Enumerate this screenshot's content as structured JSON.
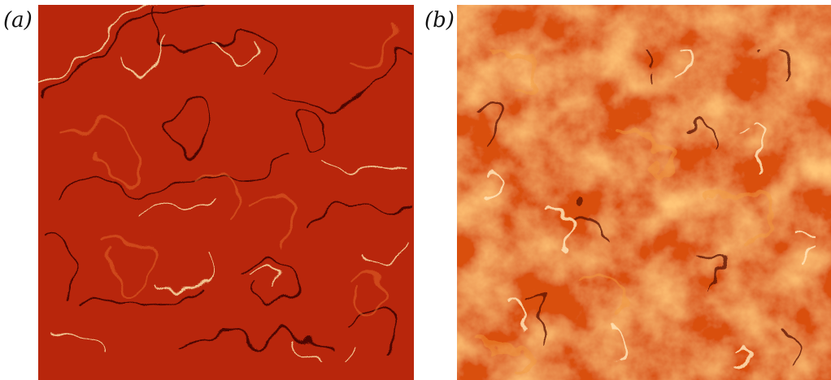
{
  "panels": [
    {
      "label": "(a)",
      "colormap": {
        "base": "#b8260c",
        "dark": "#3a0600",
        "light": "#f7d6a0"
      }
    },
    {
      "label": "(b)",
      "colormap": {
        "base": "#d9500f",
        "dark": "#5a0a00",
        "light": "#ffe4b8"
      }
    }
  ]
}
